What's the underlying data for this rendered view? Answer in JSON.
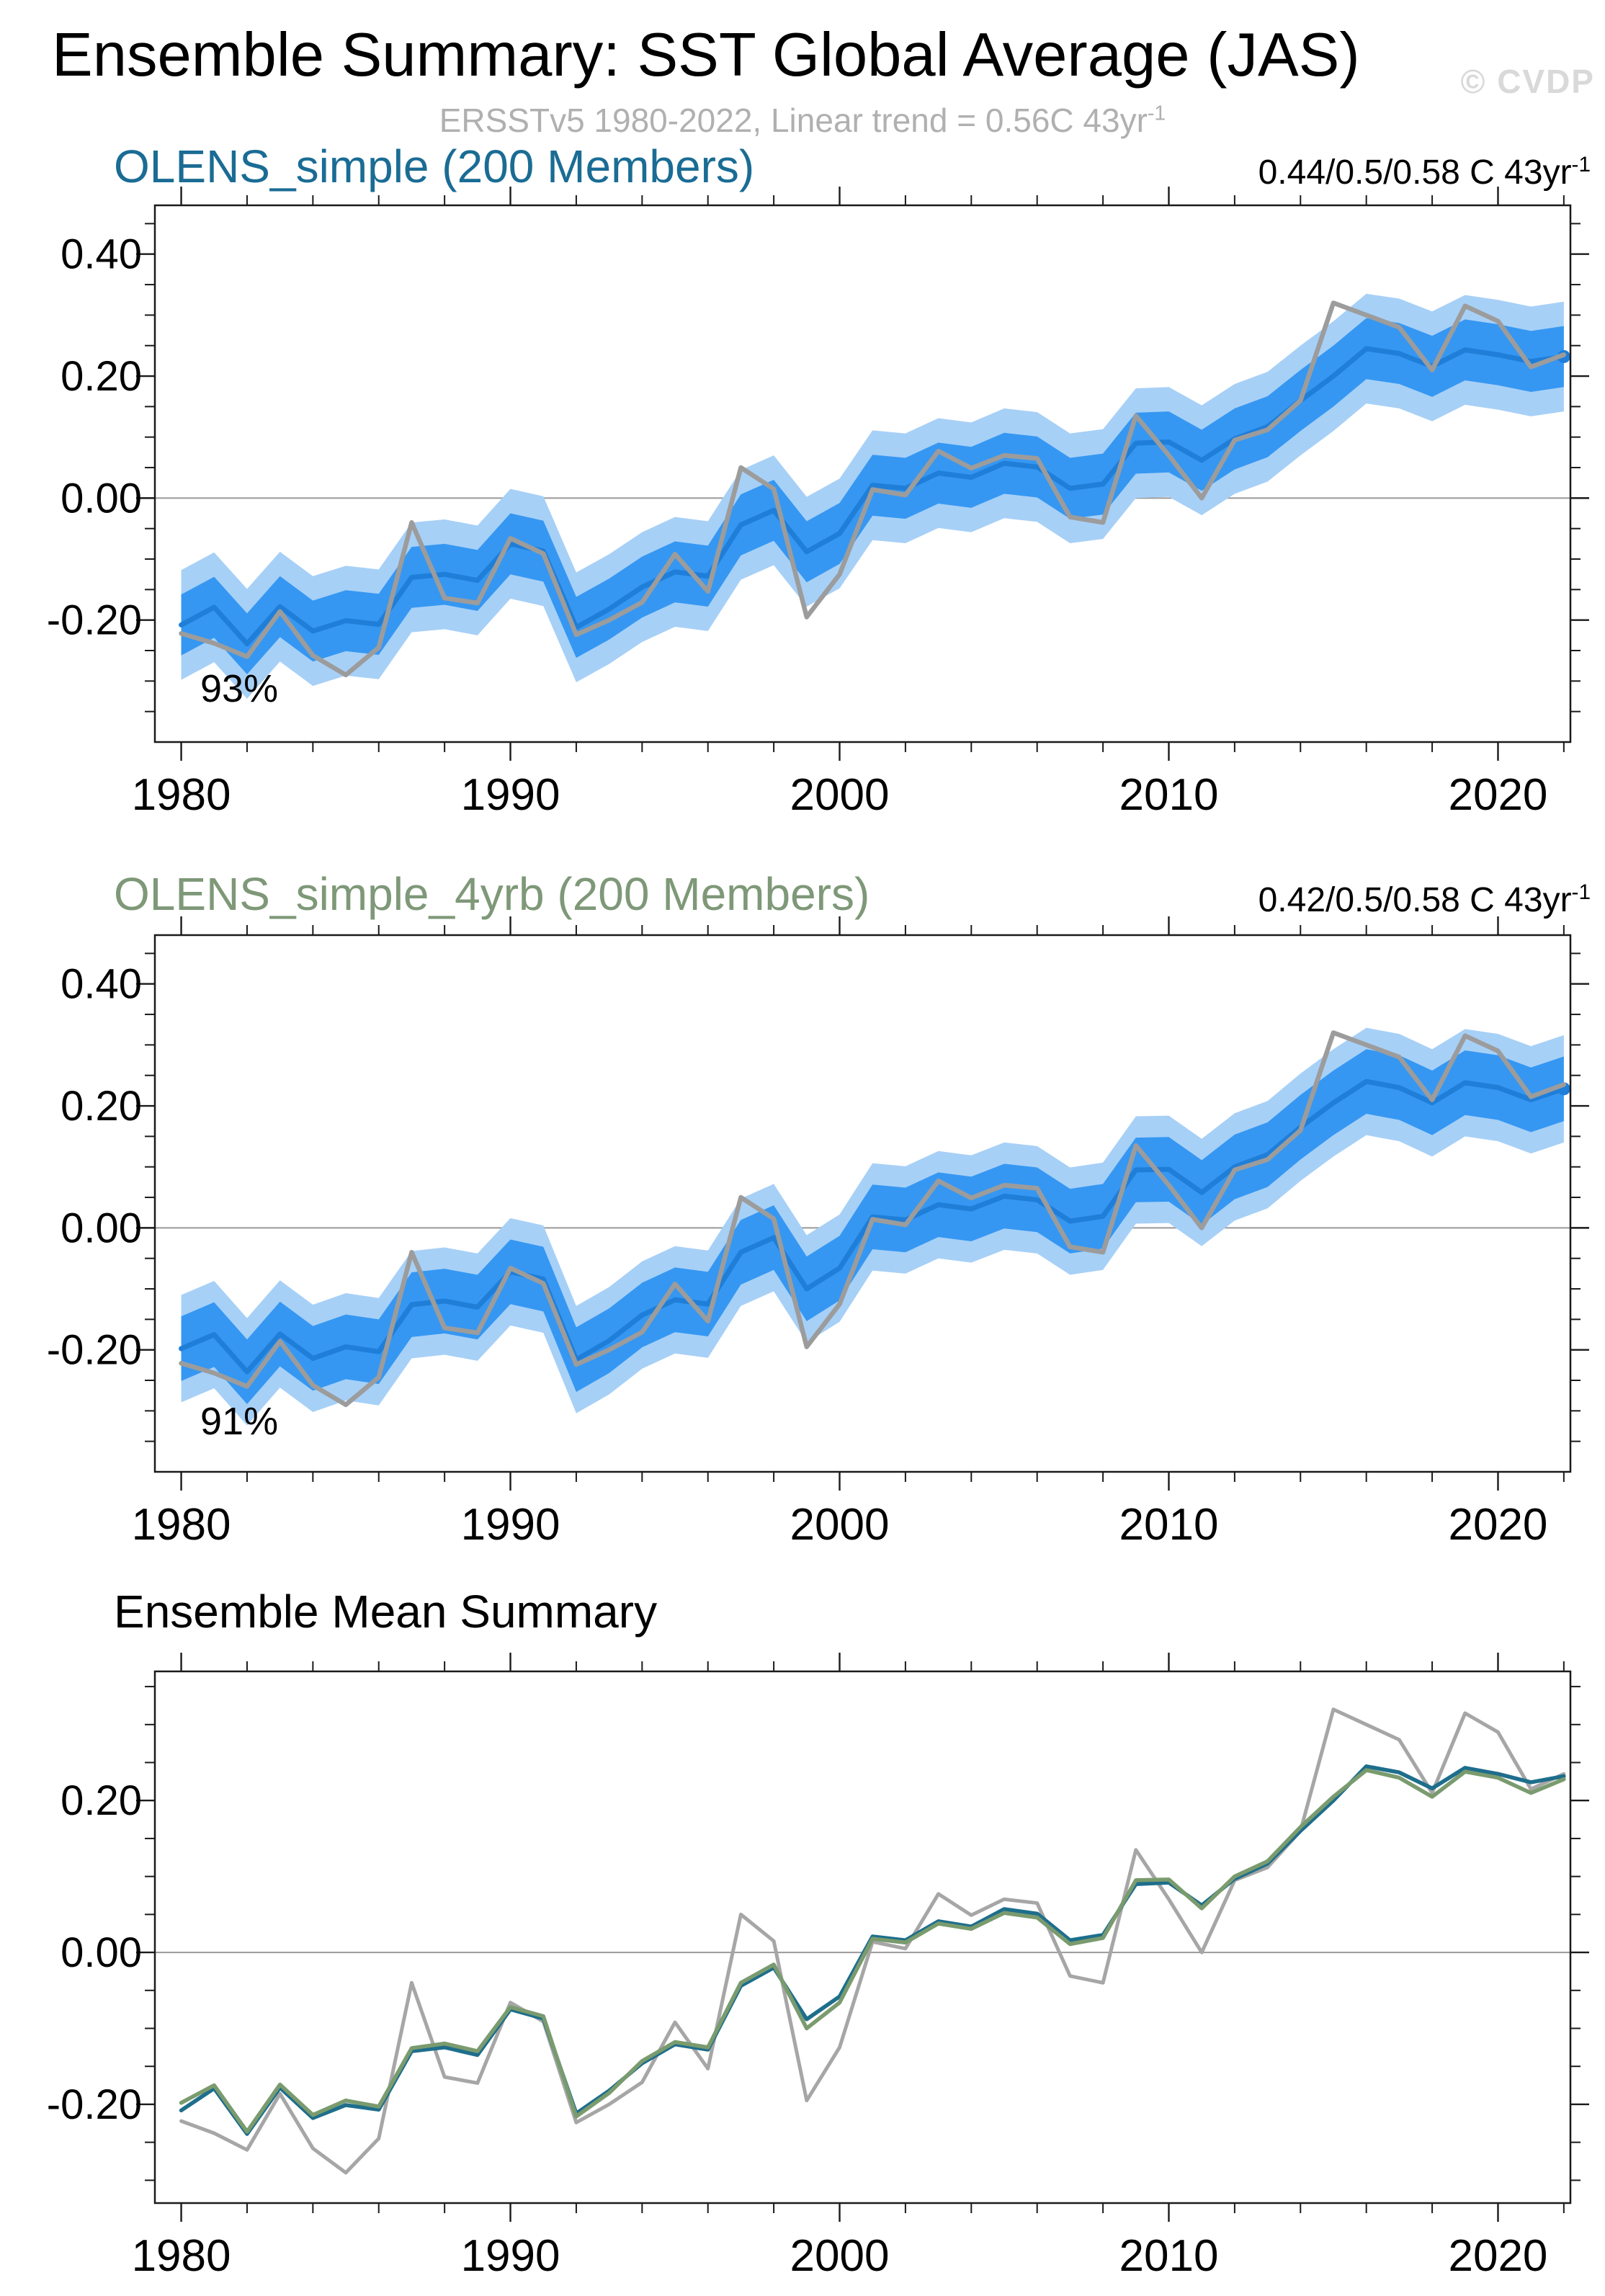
{
  "page": {
    "title": "Ensemble Summary: SST Global Average (JAS)",
    "watermark": "© CVDP",
    "subtitle": {
      "text": "ERSSTv5 1980-2022, Linear trend = 0.56C 43yr",
      "sup": "-1"
    }
  },
  "chart_data": [
    {
      "type": "line",
      "title": "OLENS_simple (200 Members)",
      "title_color": "#1A6C94",
      "trend": {
        "text": "0.44/0.5/0.58 C 43yr",
        "sup": "-1"
      },
      "pct_label": "93%",
      "legend_position": "none",
      "grid": "zero-line-only",
      "axes": {
        "xlim": [
          1979.2,
          2022.2
        ],
        "ylim": [
          -0.4,
          0.48
        ],
        "xticks_major": [
          {
            "v": 1980,
            "label": "1980"
          },
          {
            "v": 1990,
            "label": "1990"
          },
          {
            "v": 2000,
            "label": "2000"
          },
          {
            "v": 2010,
            "label": "2010"
          },
          {
            "v": 2020,
            "label": "2020"
          }
        ],
        "xticks_minor": [
          1982,
          1984,
          1986,
          1988,
          1992,
          1994,
          1996,
          1998,
          2002,
          2004,
          2006,
          2008,
          2012,
          2014,
          2016,
          2018,
          2022
        ],
        "yticks_major": [
          {
            "v": 0.4,
            "label": "0.40"
          },
          {
            "v": 0.2,
            "label": "0.20"
          },
          {
            "v": 0.0,
            "label": "0.00"
          },
          {
            "v": -0.2,
            "label": "-0.20"
          }
        ],
        "yticks_minor": [
          0.45,
          0.35,
          0.3,
          0.25,
          0.15,
          0.1,
          0.05,
          -0.05,
          -0.1,
          -0.15,
          -0.25,
          -0.3,
          -0.35
        ]
      },
      "x": [
        1980,
        1981,
        1982,
        1983,
        1984,
        1985,
        1986,
        1987,
        1988,
        1989,
        1990,
        1991,
        1992,
        1993,
        1994,
        1995,
        1996,
        1997,
        1998,
        1999,
        2000,
        2001,
        2002,
        2003,
        2004,
        2005,
        2006,
        2007,
        2008,
        2009,
        2010,
        2011,
        2012,
        2013,
        2014,
        2015,
        2016,
        2017,
        2018,
        2019,
        2020,
        2021,
        2022
      ],
      "bands": {
        "inner_half": 0.05,
        "outer_half": 0.09,
        "inner_color": "#3597F2",
        "outer_color": "#A7D0F7"
      },
      "series": [
        {
          "name": "ensemble-mean",
          "color": "#1F7ED8",
          "width": 7,
          "end_dot": true,
          "values": [
            -0.208,
            -0.179,
            -0.239,
            -0.178,
            -0.218,
            -0.201,
            -0.207,
            -0.13,
            -0.125,
            -0.135,
            -0.075,
            -0.087,
            -0.212,
            -0.182,
            -0.146,
            -0.121,
            -0.128,
            -0.044,
            -0.02,
            -0.088,
            -0.058,
            0.021,
            0.016,
            0.041,
            0.034,
            0.057,
            0.051,
            0.016,
            0.023,
            0.09,
            0.092,
            0.062,
            0.097,
            0.117,
            0.16,
            0.2,
            0.245,
            0.237,
            0.216,
            0.243,
            0.235,
            0.224,
            0.232
          ]
        },
        {
          "name": "ersstv5-obs",
          "color": "#9C9C9C",
          "width": 6.5,
          "end_dot": false,
          "values": [
            -0.222,
            -0.238,
            -0.26,
            -0.186,
            -0.258,
            -0.29,
            -0.245,
            -0.04,
            -0.164,
            -0.172,
            -0.066,
            -0.091,
            -0.224,
            -0.2,
            -0.171,
            -0.092,
            -0.153,
            0.05,
            0.015,
            -0.195,
            -0.125,
            0.014,
            0.005,
            0.077,
            0.049,
            0.07,
            0.065,
            -0.031,
            -0.04,
            0.135,
            0.07,
            0.0,
            0.095,
            0.112,
            0.16,
            0.32,
            0.3,
            0.28,
            0.21,
            0.315,
            0.29,
            0.215,
            0.235
          ]
        }
      ]
    },
    {
      "type": "line",
      "title": "OLENS_simple_4yrb (200 Members)",
      "title_color": "#7E9878",
      "trend": {
        "text": "0.42/0.5/0.58 C 43yr",
        "sup": "-1"
      },
      "pct_label": "91%",
      "legend_position": "none",
      "grid": "zero-line-only",
      "axes": {
        "xlim": [
          1979.2,
          2022.2
        ],
        "ylim": [
          -0.4,
          0.48
        ],
        "xticks_major": [
          {
            "v": 1980,
            "label": "1980"
          },
          {
            "v": 1990,
            "label": "1990"
          },
          {
            "v": 2000,
            "label": "2000"
          },
          {
            "v": 2010,
            "label": "2010"
          },
          {
            "v": 2020,
            "label": "2020"
          }
        ],
        "xticks_minor": [
          1982,
          1984,
          1986,
          1988,
          1992,
          1994,
          1996,
          1998,
          2002,
          2004,
          2006,
          2008,
          2012,
          2014,
          2016,
          2018,
          2022
        ],
        "yticks_major": [
          {
            "v": 0.4,
            "label": "0.40"
          },
          {
            "v": 0.2,
            "label": "0.20"
          },
          {
            "v": 0.0,
            "label": "0.00"
          },
          {
            "v": -0.2,
            "label": "-0.20"
          }
        ],
        "yticks_minor": [
          0.45,
          0.35,
          0.3,
          0.25,
          0.15,
          0.1,
          0.05,
          -0.05,
          -0.1,
          -0.15,
          -0.25,
          -0.3,
          -0.35
        ]
      },
      "x": [
        1980,
        1981,
        1982,
        1983,
        1984,
        1985,
        1986,
        1987,
        1988,
        1989,
        1990,
        1991,
        1992,
        1993,
        1994,
        1995,
        1996,
        1997,
        1998,
        1999,
        2000,
        2001,
        2002,
        2003,
        2004,
        2005,
        2006,
        2007,
        2008,
        2009,
        2010,
        2011,
        2012,
        2013,
        2014,
        2015,
        2016,
        2017,
        2018,
        2019,
        2020,
        2021,
        2022
      ],
      "bands": {
        "inner_half": 0.053,
        "outer_half": 0.088,
        "inner_color": "#3597F2",
        "outer_color": "#A7D0F7"
      },
      "series": [
        {
          "name": "ensemble-mean",
          "color": "#1F7ED8",
          "width": 7,
          "end_dot": true,
          "values": [
            -0.198,
            -0.175,
            -0.236,
            -0.174,
            -0.214,
            -0.195,
            -0.203,
            -0.126,
            -0.12,
            -0.13,
            -0.072,
            -0.084,
            -0.216,
            -0.185,
            -0.143,
            -0.118,
            -0.125,
            -0.04,
            -0.016,
            -0.1,
            -0.066,
            0.018,
            0.013,
            0.038,
            0.031,
            0.052,
            0.046,
            0.011,
            0.019,
            0.095,
            0.096,
            0.058,
            0.1,
            0.12,
            0.165,
            0.205,
            0.24,
            0.23,
            0.205,
            0.238,
            0.23,
            0.21,
            0.228
          ]
        },
        {
          "name": "ersstv5-obs",
          "color": "#9C9C9C",
          "width": 6.5,
          "end_dot": false,
          "values": [
            -0.222,
            -0.238,
            -0.26,
            -0.186,
            -0.258,
            -0.29,
            -0.245,
            -0.04,
            -0.164,
            -0.172,
            -0.066,
            -0.091,
            -0.224,
            -0.2,
            -0.171,
            -0.092,
            -0.153,
            0.05,
            0.015,
            -0.195,
            -0.125,
            0.014,
            0.005,
            0.077,
            0.049,
            0.07,
            0.065,
            -0.031,
            -0.04,
            0.135,
            0.07,
            0.0,
            0.095,
            0.112,
            0.16,
            0.32,
            0.3,
            0.28,
            0.21,
            0.315,
            0.29,
            0.215,
            0.235
          ]
        }
      ]
    },
    {
      "type": "line",
      "title": "Ensemble Mean Summary",
      "title_color": "#000000",
      "legend_position": "none",
      "grid": "zero-line-only",
      "axes": {
        "xlim": [
          1979.2,
          2022.2
        ],
        "ylim": [
          -0.33,
          0.37
        ],
        "xticks_major": [
          {
            "v": 1980,
            "label": "1980"
          },
          {
            "v": 1990,
            "label": "1990"
          },
          {
            "v": 2000,
            "label": "2000"
          },
          {
            "v": 2010,
            "label": "2010"
          },
          {
            "v": 2020,
            "label": "2020"
          }
        ],
        "xticks_minor": [
          1982,
          1984,
          1986,
          1988,
          1992,
          1994,
          1996,
          1998,
          2002,
          2004,
          2006,
          2008,
          2012,
          2014,
          2016,
          2018,
          2022
        ],
        "yticks_major": [
          {
            "v": 0.2,
            "label": "0.20"
          },
          {
            "v": 0.0,
            "label": "0.00"
          },
          {
            "v": -0.2,
            "label": "-0.20"
          }
        ],
        "yticks_minor": [
          0.35,
          0.3,
          0.25,
          0.15,
          0.1,
          0.05,
          -0.05,
          -0.1,
          -0.15,
          -0.25,
          -0.3
        ]
      },
      "x": [
        1980,
        1981,
        1982,
        1983,
        1984,
        1985,
        1986,
        1987,
        1988,
        1989,
        1990,
        1991,
        1992,
        1993,
        1994,
        1995,
        1996,
        1997,
        1998,
        1999,
        2000,
        2001,
        2002,
        2003,
        2004,
        2005,
        2006,
        2007,
        2008,
        2009,
        2010,
        2011,
        2012,
        2013,
        2014,
        2015,
        2016,
        2017,
        2018,
        2019,
        2020,
        2021,
        2022
      ],
      "series": [
        {
          "name": "ersstv5-obs",
          "color": "#A6A6A6",
          "width": 5,
          "end_dot": false,
          "values": [
            -0.222,
            -0.238,
            -0.26,
            -0.186,
            -0.258,
            -0.29,
            -0.245,
            -0.04,
            -0.164,
            -0.172,
            -0.066,
            -0.091,
            -0.224,
            -0.2,
            -0.171,
            -0.092,
            -0.153,
            0.05,
            0.015,
            -0.195,
            -0.125,
            0.014,
            0.005,
            0.077,
            0.049,
            0.07,
            0.065,
            -0.031,
            -0.04,
            0.135,
            0.07,
            0.0,
            0.095,
            0.112,
            0.16,
            0.32,
            0.3,
            0.28,
            0.21,
            0.315,
            0.29,
            0.215,
            0.235
          ]
        },
        {
          "name": "olens-simple-mean",
          "color": "#1E6E8C",
          "width": 5.5,
          "end_dot": false,
          "values": [
            -0.208,
            -0.179,
            -0.239,
            -0.178,
            -0.218,
            -0.201,
            -0.207,
            -0.13,
            -0.125,
            -0.135,
            -0.075,
            -0.087,
            -0.212,
            -0.182,
            -0.146,
            -0.121,
            -0.128,
            -0.044,
            -0.02,
            -0.088,
            -0.058,
            0.021,
            0.016,
            0.041,
            0.034,
            0.057,
            0.051,
            0.016,
            0.023,
            0.09,
            0.092,
            0.062,
            0.097,
            0.117,
            0.16,
            0.2,
            0.245,
            0.237,
            0.216,
            0.243,
            0.235,
            0.224,
            0.232
          ]
        },
        {
          "name": "olens-simple-4yrb-mean",
          "color": "#7A9B6E",
          "width": 5.5,
          "end_dot": false,
          "values": [
            -0.198,
            -0.175,
            -0.236,
            -0.174,
            -0.214,
            -0.195,
            -0.203,
            -0.126,
            -0.12,
            -0.13,
            -0.072,
            -0.084,
            -0.216,
            -0.185,
            -0.143,
            -0.118,
            -0.125,
            -0.04,
            -0.016,
            -0.1,
            -0.066,
            0.018,
            0.013,
            0.038,
            0.031,
            0.052,
            0.046,
            0.011,
            0.019,
            0.095,
            0.096,
            0.058,
            0.1,
            0.12,
            0.165,
            0.205,
            0.24,
            0.23,
            0.205,
            0.238,
            0.23,
            0.21,
            0.228
          ]
        }
      ]
    }
  ]
}
